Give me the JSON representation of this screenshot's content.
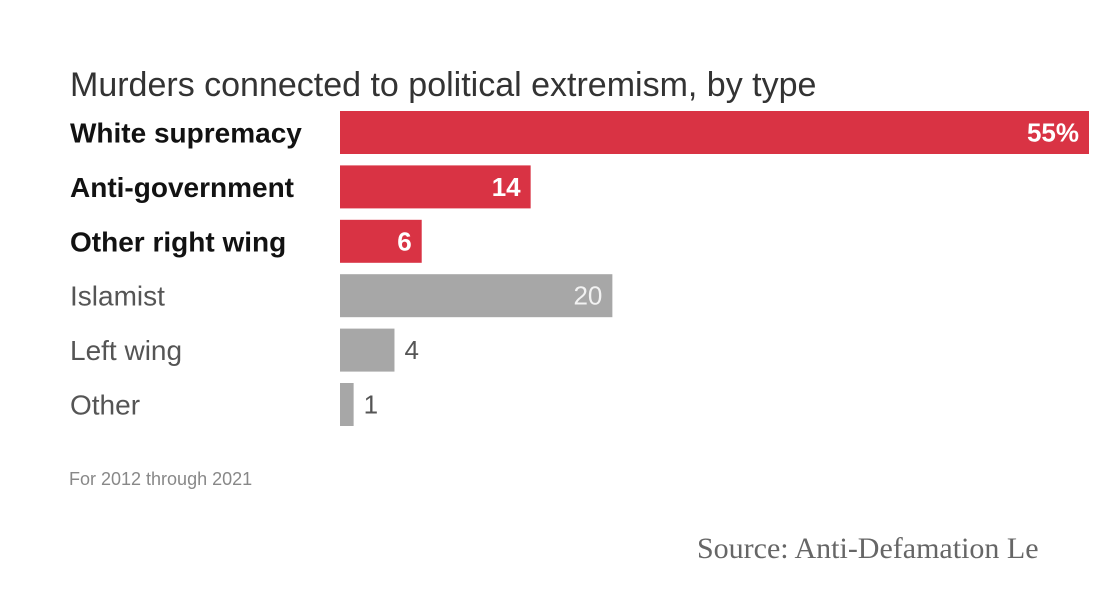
{
  "chart_data": {
    "type": "bar",
    "orientation": "horizontal",
    "title": "Murders connected to political extremism, by type",
    "categories": [
      "White supremacy",
      "Anti-government",
      "Other right wing",
      "Islamist",
      "Left wing",
      "Other"
    ],
    "values": [
      55,
      14,
      6,
      20,
      4,
      1
    ],
    "value_labels": [
      "55%",
      "14",
      "6",
      "20",
      "4",
      "1"
    ],
    "highlight": [
      true,
      true,
      true,
      false,
      false,
      false
    ],
    "colors": {
      "highlight": "#d93344",
      "other": "#a7a7a7"
    },
    "xlim": [
      0,
      55
    ],
    "grid": false,
    "legend": "none",
    "note": "For 2012 through 2021"
  },
  "source": "Source: Anti-Defamation Le"
}
